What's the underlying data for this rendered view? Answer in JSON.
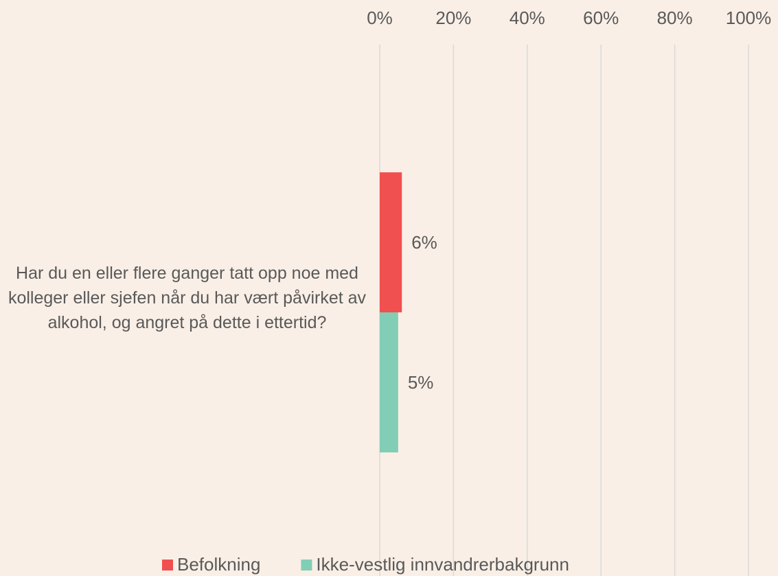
{
  "chart_data": {
    "type": "bar",
    "orientation": "horizontal",
    "categories": [
      "Har du en eller flere ganger tatt opp noe med kolleger eller sjefen når du har vært påvirket av alkohol, og angret på dette i ettertid?"
    ],
    "series": [
      {
        "name": "Befolkning",
        "color": "#f0504f",
        "values": [
          6
        ],
        "value_labels": [
          "6%"
        ]
      },
      {
        "name": "Ikke-vestlig innvandrerbakgrunn",
        "color": "#82cdb5",
        "values": [
          5
        ],
        "value_labels": [
          "5%"
        ]
      }
    ],
    "xlim": [
      0,
      100
    ],
    "xticks": [
      {
        "value": 0,
        "label": "0%"
      },
      {
        "value": 20,
        "label": "20%"
      },
      {
        "value": 40,
        "label": "40%"
      },
      {
        "value": 60,
        "label": "60%"
      },
      {
        "value": 80,
        "label": "80%"
      },
      {
        "value": 100,
        "label": "100%"
      }
    ],
    "grid": true,
    "legend": "bottom"
  }
}
